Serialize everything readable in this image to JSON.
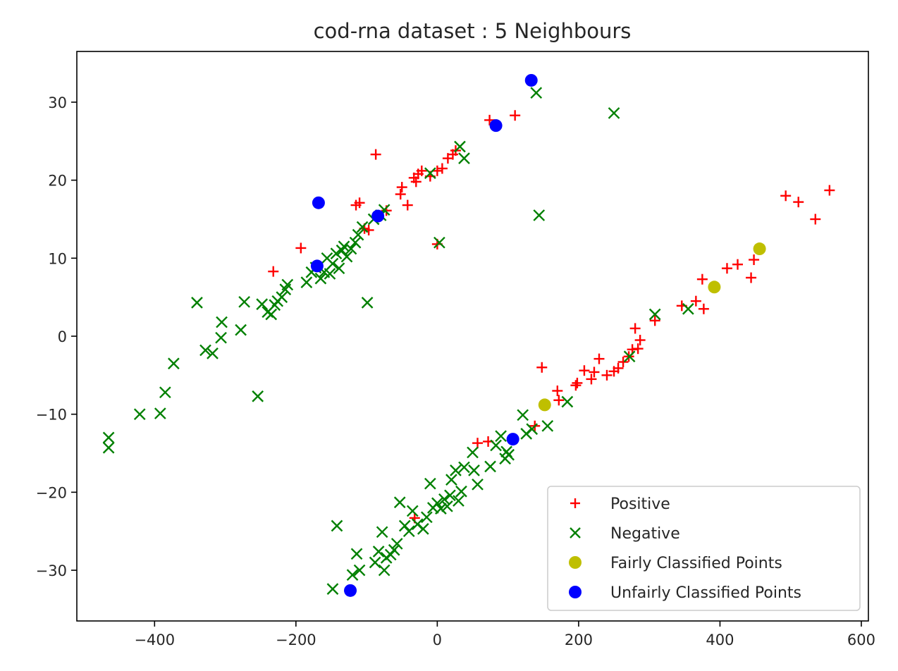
{
  "chart_data": {
    "type": "scatter",
    "title": "cod-rna dataset : 5 Neighbours",
    "xlabel": "",
    "ylabel": "",
    "xlim": [
      -510,
      610
    ],
    "ylim": [
      -36.5,
      36.5
    ],
    "xticks": [
      -400,
      -200,
      0,
      200,
      400,
      600
    ],
    "yticks": [
      -30,
      -20,
      -10,
      0,
      10,
      20,
      30
    ],
    "xtick_labels": [
      "−400",
      "−200",
      "0",
      "200",
      "400",
      "600"
    ],
    "ytick_labels": [
      "−30",
      "−20",
      "−10",
      "0",
      "10",
      "20",
      "30"
    ],
    "grid": false,
    "legend_position": "lower-right",
    "series": [
      {
        "name": "Positive",
        "marker": "plus",
        "color": "#ff0000",
        "points": [
          [
            -232,
            8.3
          ],
          [
            -193,
            11.3
          ],
          [
            -87,
            23.3
          ],
          [
            -115,
            16.8
          ],
          [
            -110,
            17.1
          ],
          [
            -103,
            13.8
          ],
          [
            -97,
            13.6
          ],
          [
            -72,
            16.1
          ],
          [
            -52,
            18.2
          ],
          [
            -50,
            19.1
          ],
          [
            -42,
            16.8
          ],
          [
            -33,
            20.3
          ],
          [
            -30,
            19.8
          ],
          [
            -27,
            20.8
          ],
          [
            -22,
            21.2
          ],
          [
            -10,
            20.5
          ],
          [
            0,
            21.2
          ],
          [
            7,
            21.5
          ],
          [
            15,
            22.8
          ],
          [
            22,
            23.3
          ],
          [
            26,
            23.8
          ],
          [
            74,
            27.7
          ],
          [
            110,
            28.3
          ],
          [
            0,
            11.8
          ],
          [
            -32,
            -23.3
          ],
          [
            57,
            -13.7
          ],
          [
            72,
            -13.5
          ],
          [
            138,
            -11.5
          ],
          [
            148,
            -4.0
          ],
          [
            170,
            -7.0
          ],
          [
            172,
            -8.2
          ],
          [
            196,
            -6.3
          ],
          [
            198,
            -6.0
          ],
          [
            208,
            -4.4
          ],
          [
            218,
            -5.5
          ],
          [
            222,
            -4.6
          ],
          [
            229,
            -2.9
          ],
          [
            240,
            -5.0
          ],
          [
            250,
            -4.5
          ],
          [
            256,
            -4.1
          ],
          [
            263,
            -3.3
          ],
          [
            271,
            -2.6
          ],
          [
            276,
            -1.7
          ],
          [
            280,
            1.0
          ],
          [
            284,
            -1.6
          ],
          [
            287,
            -0.5
          ],
          [
            308,
            2.0
          ],
          [
            346,
            3.9
          ],
          [
            366,
            4.5
          ],
          [
            375,
            7.3
          ],
          [
            377,
            3.5
          ],
          [
            410,
            8.7
          ],
          [
            425,
            9.2
          ],
          [
            444,
            7.5
          ],
          [
            448,
            9.8
          ],
          [
            493,
            18.0
          ],
          [
            511,
            17.2
          ],
          [
            535,
            15.0
          ],
          [
            555,
            18.7
          ]
        ]
      },
      {
        "name": "Negative",
        "marker": "x",
        "color": "#008000",
        "points": [
          [
            -465,
            -13.0
          ],
          [
            -465,
            -14.3
          ],
          [
            -421,
            -10.0
          ],
          [
            -392,
            -9.9
          ],
          [
            -385,
            -7.2
          ],
          [
            -373,
            -3.5
          ],
          [
            -340,
            4.3
          ],
          [
            -328,
            -1.8
          ],
          [
            -318,
            -2.2
          ],
          [
            -306,
            -0.2
          ],
          [
            -305,
            1.8
          ],
          [
            -278,
            0.8
          ],
          [
            -273,
            4.4
          ],
          [
            -254,
            -7.7
          ],
          [
            -248,
            4.1
          ],
          [
            -240,
            3.1
          ],
          [
            -235,
            2.8
          ],
          [
            -230,
            4.0
          ],
          [
            -226,
            4.5
          ],
          [
            -220,
            5.0
          ],
          [
            -215,
            6.0
          ],
          [
            -212,
            6.6
          ],
          [
            -185,
            6.9
          ],
          [
            -178,
            8.2
          ],
          [
            -172,
            8.8
          ],
          [
            -165,
            7.4
          ],
          [
            -160,
            8.2
          ],
          [
            -156,
            10.0
          ],
          [
            -152,
            8.0
          ],
          [
            -148,
            9.3
          ],
          [
            -143,
            10.6
          ],
          [
            -139,
            8.7
          ],
          [
            -135,
            11.0
          ],
          [
            -132,
            11.5
          ],
          [
            -128,
            10.2
          ],
          [
            -122,
            11.2
          ],
          [
            -116,
            12.0
          ],
          [
            -112,
            13.0
          ],
          [
            -106,
            14.0
          ],
          [
            -99,
            4.3
          ],
          [
            -90,
            15.0
          ],
          [
            -80,
            15.5
          ],
          [
            -75,
            16.2
          ],
          [
            3,
            12.0
          ],
          [
            -10,
            20.9
          ],
          [
            32,
            24.3
          ],
          [
            38,
            22.8
          ],
          [
            140,
            31.2
          ],
          [
            144,
            15.5
          ],
          [
            250,
            28.6
          ],
          [
            -148,
            -32.4
          ],
          [
            -142,
            -24.3
          ],
          [
            -120,
            -30.6
          ],
          [
            -114,
            -27.9
          ],
          [
            -110,
            -30.0
          ],
          [
            -88,
            -29.0
          ],
          [
            -83,
            -27.6
          ],
          [
            -78,
            -25.1
          ],
          [
            -75,
            -30.0
          ],
          [
            -72,
            -28.4
          ],
          [
            -66,
            -28.0
          ],
          [
            -61,
            -27.4
          ],
          [
            -57,
            -26.6
          ],
          [
            -53,
            -21.3
          ],
          [
            -46,
            -24.3
          ],
          [
            -40,
            -25.0
          ],
          [
            -35,
            -22.4
          ],
          [
            -28,
            -24.1
          ],
          [
            -20,
            -24.7
          ],
          [
            -15,
            -23.2
          ],
          [
            -10,
            -18.9
          ],
          [
            -6,
            -22.0
          ],
          [
            0,
            -21.4
          ],
          [
            5,
            -22.1
          ],
          [
            10,
            -20.9
          ],
          [
            14,
            -21.8
          ],
          [
            18,
            -20.4
          ],
          [
            20,
            -18.4
          ],
          [
            26,
            -17.2
          ],
          [
            30,
            -21.1
          ],
          [
            34,
            -19.9
          ],
          [
            38,
            -16.8
          ],
          [
            50,
            -14.9
          ],
          [
            52,
            -17.2
          ],
          [
            57,
            -19.0
          ],
          [
            75,
            -16.7
          ],
          [
            83,
            -14.0
          ],
          [
            90,
            -12.8
          ],
          [
            96,
            -15.7
          ],
          [
            98,
            -14.8
          ],
          [
            101,
            -15.2
          ],
          [
            121,
            -10.1
          ],
          [
            126,
            -12.5
          ],
          [
            134,
            -11.9
          ],
          [
            156,
            -11.5
          ],
          [
            184,
            -8.4
          ],
          [
            272,
            -2.6
          ],
          [
            308,
            2.8
          ],
          [
            355,
            3.5
          ]
        ]
      },
      {
        "name": "Fairly Classified Points",
        "marker": "circle",
        "color": "#bfbf00",
        "points": [
          [
            152,
            -8.8
          ],
          [
            392,
            6.3
          ],
          [
            456,
            11.2
          ]
        ]
      },
      {
        "name": "Unfairly Classified Points",
        "marker": "circle",
        "color": "#0000ff",
        "points": [
          [
            -168,
            17.1
          ],
          [
            -170,
            9.0
          ],
          [
            -84,
            15.4
          ],
          [
            83,
            27.0
          ],
          [
            133,
            32.8
          ],
          [
            107,
            -13.2
          ],
          [
            -123,
            -32.6
          ]
        ]
      }
    ]
  }
}
